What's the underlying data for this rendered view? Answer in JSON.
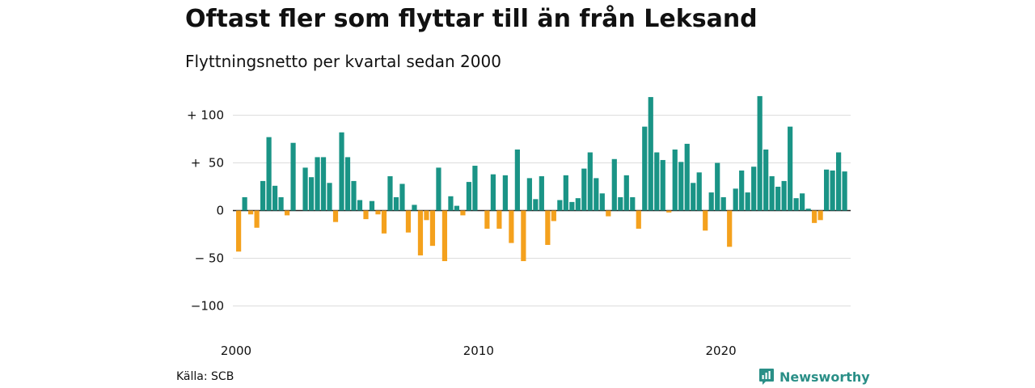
{
  "header": {
    "title": "Oftast fler som flyttar till än från Leksand",
    "subtitle": "Flyttningsnetto per kvartal sedan 2000"
  },
  "footer": {
    "source": "Källa: SCB",
    "brand": "Newsworthy"
  },
  "colors": {
    "positive": "#1a9486",
    "negative": "#f4a11d",
    "grid": "#dddddd",
    "axis": "#222222"
  },
  "chart_data": {
    "type": "bar",
    "title": "Oftast fler som flyttar till än från Leksand",
    "subtitle": "Flyttningsnetto per kvartal sedan 2000",
    "xlabel": "",
    "ylabel": "",
    "ylim": [
      -110,
      125
    ],
    "y_ticks": [
      100,
      50,
      0,
      -50,
      -100
    ],
    "y_tick_labels": [
      "+ 100",
      "+  50",
      "0",
      "− 50",
      "−100"
    ],
    "x_ticks": [
      2000,
      2010,
      2020
    ],
    "x_tick_labels": [
      "2000",
      "2010",
      "2020"
    ],
    "x_start": 2000,
    "grid": true,
    "values": [
      -43,
      14,
      -4,
      -18,
      31,
      77,
      26,
      14,
      -5,
      71,
      0,
      45,
      35,
      56,
      56,
      29,
      -12,
      82,
      56,
      31,
      11,
      -9,
      10,
      -4,
      -24,
      36,
      14,
      28,
      -23,
      6,
      -47,
      -10,
      -37,
      45,
      -53,
      15,
      5,
      -5,
      30,
      47,
      0,
      -19,
      38,
      -19,
      37,
      -34,
      64,
      -53,
      34,
      12,
      36,
      -36,
      -11,
      11,
      37,
      9,
      13,
      44,
      61,
      34,
      18,
      -6,
      54,
      14,
      37,
      14,
      -19,
      88,
      119,
      61,
      53,
      -2,
      64,
      51,
      70,
      29,
      40,
      -21,
      19,
      50,
      14,
      -38,
      23,
      42,
      19,
      46,
      120,
      64,
      36,
      25,
      31,
      88,
      13,
      18,
      2,
      -13,
      -10,
      43,
      42,
      61,
      41
    ]
  }
}
